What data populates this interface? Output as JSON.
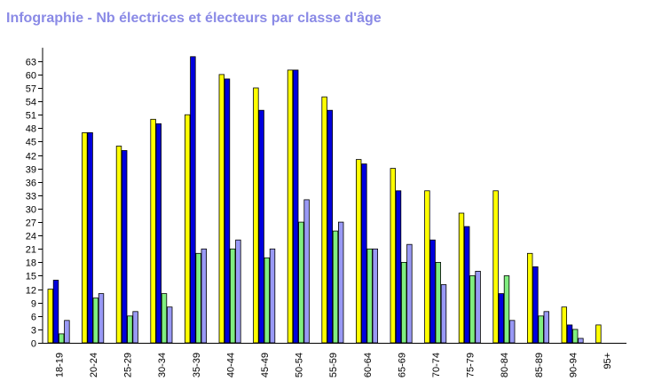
{
  "chart_data": {
    "type": "bar",
    "title": "Infographie - Nb électrices et électeurs par classe d'âge",
    "categories": [
      "18-19",
      "20-24",
      "25-29",
      "30-34",
      "35-39",
      "40-44",
      "45-49",
      "50-54",
      "55-59",
      "60-64",
      "65-69",
      "70-74",
      "75-79",
      "80-84",
      "85-89",
      "90-94",
      "95+"
    ],
    "series": [
      {
        "color": "#ffff00",
        "values": [
          12,
          47,
          44,
          50,
          51,
          60,
          57,
          61,
          55,
          41,
          39,
          34,
          29,
          34,
          20,
          8,
          4
        ]
      },
      {
        "color": "#0000dd",
        "values": [
          14,
          47,
          43,
          49,
          64,
          59,
          52,
          61,
          52,
          40,
          34,
          23,
          26,
          11,
          17,
          4,
          0
        ]
      },
      {
        "color": "#80ee80",
        "values": [
          2,
          10,
          6,
          11,
          20,
          21,
          19,
          27,
          25,
          21,
          18,
          18,
          15,
          15,
          6,
          3,
          0
        ]
      },
      {
        "color": "#9999f5",
        "values": [
          5,
          11,
          7,
          8,
          21,
          23,
          21,
          32,
          27,
          21,
          22,
          13,
          16,
          5,
          7,
          1,
          0
        ]
      }
    ],
    "yticks": [
      0,
      3,
      6,
      9,
      12,
      15,
      18,
      21,
      24,
      27,
      30,
      33,
      36,
      39,
      42,
      45,
      48,
      51,
      54,
      57,
      60,
      63
    ],
    "ylim": [
      0,
      66
    ],
    "grid": false,
    "legend": "none"
  }
}
